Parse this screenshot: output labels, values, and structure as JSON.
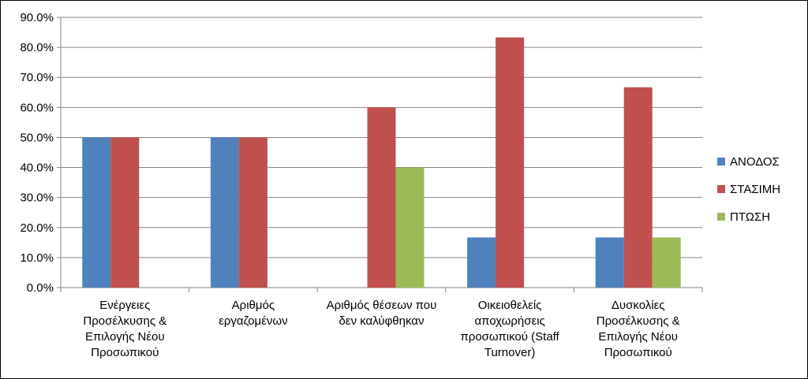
{
  "chart_data": {
    "type": "bar",
    "categories": [
      [
        "Ενέργειες",
        "Προσέλκυσης &",
        "Επιλογής Νέου",
        "Προσωπικού"
      ],
      [
        "Αριθμός",
        "εργαζομένων"
      ],
      [
        "Αριθμός θέσεων που",
        "δεν καλύφθηκαν"
      ],
      [
        "Οικειοθελείς",
        "αποχωρήσεις",
        "προσωπικού (Staff",
        "Turnover)"
      ],
      [
        "Δυσκολίες",
        "Προσέλκυσης &",
        "Επιλογής Νέου",
        "Προσωπικού"
      ]
    ],
    "series": [
      {
        "name": "ΑΝΟΔΟΣ",
        "color": "#4F81BD",
        "values": [
          50.0,
          50.0,
          0.0,
          16.7,
          16.7
        ]
      },
      {
        "name": "ΣΤΑΣΙΜΗ",
        "color": "#C0504D",
        "values": [
          50.0,
          50.0,
          60.0,
          83.3,
          66.7
        ]
      },
      {
        "name": "ΠΤΩΣΗ",
        "color": "#9BBB59",
        "values": [
          0.0,
          0.0,
          40.0,
          0.0,
          16.7
        ]
      }
    ],
    "yticks": [
      "0.0%",
      "10.0%",
      "20.0%",
      "30.0%",
      "40.0%",
      "50.0%",
      "60.0%",
      "70.0%",
      "80.0%",
      "90.0%"
    ],
    "ylim": [
      0,
      90
    ],
    "grid": true,
    "legend": "right",
    "title": "",
    "xlabel": "",
    "ylabel": ""
  }
}
